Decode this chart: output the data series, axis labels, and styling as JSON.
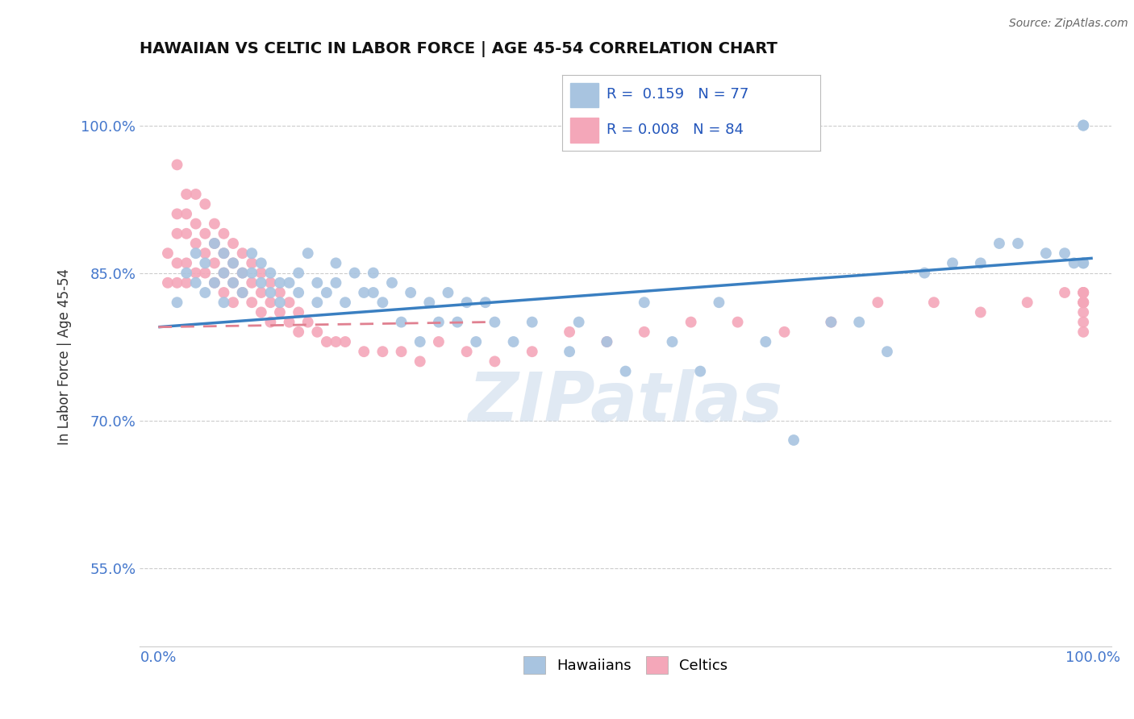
{
  "title": "HAWAIIAN VS CELTIC IN LABOR FORCE | AGE 45-54 CORRELATION CHART",
  "source_text": "Source: ZipAtlas.com",
  "ylabel": "In Labor Force | Age 45-54",
  "xlim": [
    -0.02,
    1.02
  ],
  "ylim": [
    0.47,
    1.06
  ],
  "yticks": [
    0.55,
    0.7,
    0.85,
    1.0
  ],
  "ytick_labels": [
    "55.0%",
    "70.0%",
    "85.0%",
    "100.0%"
  ],
  "xticks": [
    0.0,
    1.0
  ],
  "xtick_labels": [
    "0.0%",
    "100.0%"
  ],
  "hawaiians_R": 0.159,
  "hawaiians_N": 77,
  "celtics_R": 0.008,
  "celtics_N": 84,
  "hawaiian_color": "#a8c4e0",
  "celtic_color": "#f4a7b9",
  "trend_blue": "#3a7fc1",
  "trend_pink": "#e08090",
  "background_color": "#ffffff",
  "watermark": "ZIPatlas",
  "watermark_color": "#c8d8ea",
  "hawaiians_x": [
    0.02,
    0.03,
    0.04,
    0.04,
    0.05,
    0.05,
    0.06,
    0.06,
    0.07,
    0.07,
    0.07,
    0.08,
    0.08,
    0.09,
    0.09,
    0.1,
    0.1,
    0.11,
    0.11,
    0.12,
    0.12,
    0.13,
    0.13,
    0.14,
    0.15,
    0.15,
    0.16,
    0.17,
    0.17,
    0.18,
    0.19,
    0.19,
    0.2,
    0.21,
    0.22,
    0.23,
    0.23,
    0.24,
    0.25,
    0.26,
    0.27,
    0.28,
    0.29,
    0.3,
    0.31,
    0.32,
    0.33,
    0.34,
    0.35,
    0.36,
    0.38,
    0.4,
    0.44,
    0.45,
    0.48,
    0.5,
    0.52,
    0.55,
    0.58,
    0.6,
    0.65,
    0.68,
    0.72,
    0.75,
    0.78,
    0.82,
    0.85,
    0.88,
    0.9,
    0.92,
    0.95,
    0.97,
    0.98,
    0.99,
    0.99,
    0.99,
    0.99
  ],
  "hawaiians_y": [
    0.82,
    0.85,
    0.87,
    0.84,
    0.86,
    0.83,
    0.88,
    0.84,
    0.87,
    0.85,
    0.82,
    0.86,
    0.84,
    0.85,
    0.83,
    0.87,
    0.85,
    0.86,
    0.84,
    0.85,
    0.83,
    0.84,
    0.82,
    0.84,
    0.85,
    0.83,
    0.87,
    0.84,
    0.82,
    0.83,
    0.86,
    0.84,
    0.82,
    0.85,
    0.83,
    0.85,
    0.83,
    0.82,
    0.84,
    0.8,
    0.83,
    0.78,
    0.82,
    0.8,
    0.83,
    0.8,
    0.82,
    0.78,
    0.82,
    0.8,
    0.78,
    0.8,
    0.77,
    0.8,
    0.78,
    0.75,
    0.82,
    0.78,
    0.75,
    0.82,
    0.78,
    0.68,
    0.8,
    0.8,
    0.77,
    0.85,
    0.86,
    0.86,
    0.88,
    0.88,
    0.87,
    0.87,
    0.86,
    1.0,
    0.86,
    0.86,
    1.0
  ],
  "celtics_x": [
    0.01,
    0.01,
    0.02,
    0.02,
    0.02,
    0.02,
    0.02,
    0.03,
    0.03,
    0.03,
    0.03,
    0.03,
    0.04,
    0.04,
    0.04,
    0.04,
    0.05,
    0.05,
    0.05,
    0.05,
    0.06,
    0.06,
    0.06,
    0.06,
    0.07,
    0.07,
    0.07,
    0.07,
    0.08,
    0.08,
    0.08,
    0.08,
    0.09,
    0.09,
    0.09,
    0.1,
    0.1,
    0.1,
    0.11,
    0.11,
    0.11,
    0.12,
    0.12,
    0.12,
    0.13,
    0.13,
    0.14,
    0.14,
    0.15,
    0.15,
    0.16,
    0.17,
    0.18,
    0.19,
    0.2,
    0.22,
    0.24,
    0.26,
    0.28,
    0.3,
    0.33,
    0.36,
    0.4,
    0.44,
    0.48,
    0.52,
    0.57,
    0.62,
    0.67,
    0.72,
    0.77,
    0.83,
    0.88,
    0.93,
    0.97,
    0.99,
    0.99,
    0.99,
    0.99,
    0.99,
    0.99,
    0.99,
    0.99,
    0.99
  ],
  "celtics_y": [
    0.84,
    0.87,
    0.96,
    0.91,
    0.89,
    0.86,
    0.84,
    0.93,
    0.91,
    0.89,
    0.86,
    0.84,
    0.93,
    0.9,
    0.88,
    0.85,
    0.92,
    0.89,
    0.87,
    0.85,
    0.9,
    0.88,
    0.86,
    0.84,
    0.89,
    0.87,
    0.85,
    0.83,
    0.88,
    0.86,
    0.84,
    0.82,
    0.87,
    0.85,
    0.83,
    0.86,
    0.84,
    0.82,
    0.85,
    0.83,
    0.81,
    0.84,
    0.82,
    0.8,
    0.83,
    0.81,
    0.82,
    0.8,
    0.81,
    0.79,
    0.8,
    0.79,
    0.78,
    0.78,
    0.78,
    0.77,
    0.77,
    0.77,
    0.76,
    0.78,
    0.77,
    0.76,
    0.77,
    0.79,
    0.78,
    0.79,
    0.8,
    0.8,
    0.79,
    0.8,
    0.82,
    0.82,
    0.81,
    0.82,
    0.83,
    0.83,
    0.82,
    0.83,
    0.82,
    0.83,
    0.82,
    0.81,
    0.8,
    0.79
  ]
}
